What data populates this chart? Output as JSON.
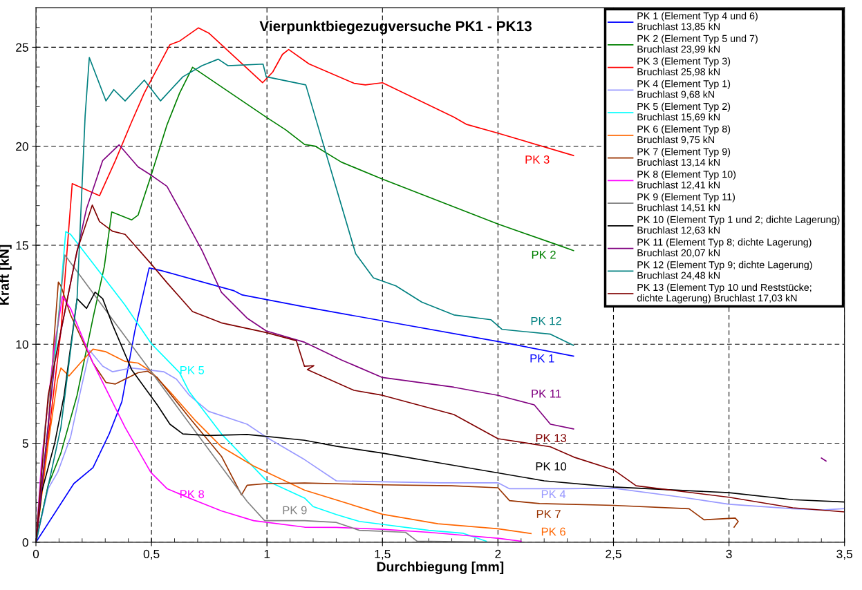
{
  "chart_data": {
    "type": "line",
    "title": "Vierpunktbiegezugversuche PK1 - PK13",
    "xlabel": "Durchbiegung [mm]",
    "ylabel": "Kraft [kN]",
    "xlim": [
      0,
      3.5
    ],
    "ylim": [
      0,
      27
    ],
    "xticks": [
      0,
      {
        "value": 0.1,
        "label": null
      },
      {
        "value": 0.2,
        "label": null
      },
      {
        "value": 0.3,
        "label": null
      },
      {
        "value": 0.4,
        "label": null
      },
      {
        "value": 0.5,
        "label": "0,5"
      },
      {
        "value": 0.6,
        "label": null
      },
      {
        "value": 0.7,
        "label": null
      },
      {
        "value": 0.8,
        "label": null
      },
      {
        "value": 0.9,
        "label": null
      },
      1,
      {
        "value": 1.1,
        "label": null
      },
      {
        "value": 1.2,
        "label": null
      },
      {
        "value": 1.3,
        "label": null
      },
      {
        "value": 1.4,
        "label": null
      },
      {
        "value": 1.5,
        "label": "1,5"
      },
      {
        "value": 1.6,
        "label": null
      },
      {
        "value": 1.7,
        "label": null
      },
      {
        "value": 1.8,
        "label": null
      },
      {
        "value": 1.9,
        "label": null
      },
      2,
      {
        "value": 2.1,
        "label": null
      },
      {
        "value": 2.2,
        "label": null
      },
      {
        "value": 2.3,
        "label": null
      },
      {
        "value": 2.4,
        "label": null
      },
      {
        "value": 2.5,
        "label": "2,5"
      },
      {
        "value": 2.6,
        "label": null
      },
      {
        "value": 2.7,
        "label": null
      },
      {
        "value": 2.8,
        "label": null
      },
      {
        "value": 2.9,
        "label": null
      },
      3,
      {
        "value": 3.1,
        "label": null
      },
      {
        "value": 3.2,
        "label": null
      },
      {
        "value": 3.3,
        "label": null
      },
      {
        "value": 3.4,
        "label": null
      },
      {
        "value": 3.5,
        "label": "3,5"
      }
    ],
    "yticks": [
      0,
      {
        "value": 1,
        "label": null
      },
      {
        "value": 2,
        "label": null
      },
      {
        "value": 3,
        "label": null
      },
      {
        "value": 4,
        "label": null
      },
      5,
      {
        "value": 6,
        "label": null
      },
      {
        "value": 7,
        "label": null
      },
      {
        "value": 8,
        "label": null
      },
      {
        "value": 9,
        "label": null
      },
      10,
      {
        "value": 11,
        "label": null
      },
      {
        "value": 12,
        "label": null
      },
      {
        "value": 13,
        "label": null
      },
      {
        "value": 14,
        "label": null
      },
      15,
      {
        "value": 16,
        "label": null
      },
      {
        "value": 17,
        "label": null
      },
      {
        "value": 18,
        "label": null
      },
      {
        "value": 19,
        "label": null
      },
      20,
      {
        "value": 21,
        "label": null
      },
      {
        "value": 22,
        "label": null
      },
      {
        "value": 23,
        "label": null
      },
      {
        "value": 24,
        "label": null
      },
      25,
      {
        "value": 26,
        "label": null
      }
    ],
    "grid": true,
    "legend": "top right",
    "marker": "none",
    "line_style": "solid",
    "series": [
      {
        "name": "PK 1 (Element Typ 4 und 6)\nBruchlast 13,85 kN",
        "color": "#0000ff",
        "x": [
          0,
          0.164,
          0.247,
          0.317,
          0.372,
          0.428,
          0.469,
          0.49,
          0.539,
          0.858,
          0.893,
          1.162,
          2.018,
          2.327
        ],
        "values": [
          0,
          2.96,
          3.77,
          5.47,
          7.1,
          10.67,
          12.78,
          13.85,
          13.73,
          12.7,
          12.49,
          11.89,
          10.1,
          9.4
        ]
      },
      {
        "name": "PK 2 (Element Typ 5 und 7)\nBruchlast 23,99 kN",
        "color": "#008000",
        "x": [
          0,
          0.053,
          0.108,
          0.178,
          0.247,
          0.296,
          0.328,
          0.414,
          0.442,
          0.497,
          0.567,
          0.622,
          0.678,
          0.997,
          1.081,
          1.163,
          1.21,
          1.322,
          1.5,
          2.0,
          2.255,
          2.327
        ],
        "values": [
          0,
          2.88,
          4.5,
          7.42,
          11.32,
          13.92,
          16.68,
          16.28,
          16.52,
          18.47,
          21.07,
          22.69,
          23.99,
          21.47,
          20.83,
          20.09,
          20.0,
          19.2,
          18.34,
          16.07,
          15.03,
          14.73
        ]
      },
      {
        "name": "PK 3 (Element Typ 3)\nBruchlast 25,98 kN",
        "color": "#ff0000",
        "x": [
          0,
          0.108,
          0.157,
          0.275,
          0.344,
          0.414,
          0.469,
          0.58,
          0.62,
          0.703,
          0.75,
          0.981,
          1.025,
          1.067,
          1.094,
          1.182,
          1.377,
          1.426,
          1.5,
          1.809,
          1.865,
          2.0,
          2.327
        ],
        "values": [
          0,
          10.67,
          18.11,
          17.5,
          19.28,
          21.23,
          22.69,
          25.13,
          25.3,
          25.98,
          25.7,
          23.21,
          23.75,
          24.64,
          24.89,
          24.16,
          23.18,
          23.1,
          23.21,
          21.47,
          21.1,
          20.66,
          19.53
        ]
      },
      {
        "name": "PK 4 (Element Typ 1)\nBruchlast 9,68 kN",
        "color": "#9999ff",
        "x": [
          0,
          0.053,
          0.094,
          0.15,
          0.192,
          0.233,
          0.289,
          0.331,
          0.414,
          0.553,
          0.608,
          0.664,
          0.747,
          0.914,
          0.997,
          1.163,
          1.3,
          1.5,
          1.75,
          2.0,
          2.05,
          2.3,
          2.5,
          2.797,
          3.0,
          3.276,
          3.406,
          3.5
        ],
        "values": [
          0,
          2.71,
          3.53,
          5.31,
          7.59,
          9.68,
          8.89,
          8.61,
          8.8,
          8.61,
          8.24,
          7.42,
          6.61,
          5.96,
          5.31,
          4.17,
          3.1,
          3.05,
          3.0,
          3.0,
          2.7,
          2.7,
          2.73,
          2.27,
          1.92,
          1.69,
          1.63,
          1.7
        ]
      },
      {
        "name": "PK 5 (Element Typ 2)\nBruchlast 15,69 kN",
        "color": "#00ffff",
        "x": [
          0,
          0.081,
          0.129,
          0.15,
          0.247,
          0.386,
          0.5,
          0.622,
          0.664,
          0.803,
          0.997,
          1.163,
          1.2,
          1.3,
          1.4,
          1.5,
          1.7,
          1.85,
          1.95
        ],
        "values": [
          0,
          9.05,
          15.69,
          15.55,
          14.08,
          11.97,
          10.02,
          8.56,
          7.59,
          5.47,
          3.12,
          2.23,
          1.8,
          1.4,
          1.05,
          0.9,
          0.6,
          0.45,
          0.05
        ]
      },
      {
        "name": "PK 6 (Element Typ 8)\nBruchlast 9,75 kN",
        "color": "#ff6600",
        "x": [
          0,
          0.053,
          0.094,
          0.108,
          0.143,
          0.192,
          0.247,
          0.303,
          0.386,
          0.442,
          0.497,
          0.581,
          0.692,
          0.803,
          0.942,
          1.163,
          1.5,
          1.74,
          2.0,
          2.143
        ],
        "values": [
          0,
          4.99,
          8.24,
          8.8,
          8.4,
          9.05,
          9.75,
          9.62,
          9.13,
          9.05,
          8.64,
          7.59,
          6.12,
          4.82,
          3.85,
          2.63,
          1.41,
          0.93,
          0.68,
          0.44
        ]
      },
      {
        "name": "PK 7 (Element Typ 9)\nBruchlast 13,14 kN",
        "color": "#993300",
        "x": [
          0,
          0.053,
          0.081,
          0.097,
          0.108,
          0.15,
          0.247,
          0.303,
          0.344,
          0.386,
          0.442,
          0.483,
          0.525,
          0.664,
          0.803,
          0.89,
          0.914,
          0.997,
          1.163,
          1.5,
          1.8,
          2.0,
          2.05,
          2.18,
          2.5,
          2.827,
          2.892,
          3.0,
          3.027,
          3.04,
          3.022
        ],
        "values": [
          0,
          5.8,
          10.67,
          13.14,
          12.95,
          11.48,
          9.05,
          8.07,
          7.99,
          8.24,
          8.56,
          8.64,
          8.32,
          6.29,
          4.34,
          2.39,
          2.88,
          2.96,
          2.99,
          2.9,
          2.85,
          2.75,
          2.1,
          1.95,
          1.86,
          1.69,
          1.13,
          1.2,
          1.22,
          1.05,
          0.76
        ]
      },
      {
        "name": "PK 8 (Element Typ 10)\nBruchlast 12,41 kN",
        "color": "#ff00ff",
        "x": [
          0,
          0.025,
          0.08,
          0.115,
          0.15,
          0.247,
          0.386,
          0.497,
          0.567,
          0.664,
          0.803,
          0.942,
          1.163,
          1.3,
          1.5,
          1.7,
          1.9,
          2.0,
          2.1
        ],
        "values": [
          0,
          4.2,
          9.9,
          12.41,
          11.8,
          9.05,
          5.8,
          3.53,
          2.71,
          2.23,
          1.58,
          1.09,
          0.76,
          0.75,
          0.65,
          0.5,
          0.3,
          0.2,
          0.05
        ]
      },
      {
        "name": "PK 9 (Element Typ 11)\nBruchlast 14,51 kN",
        "color": "#808080",
        "x": [
          0,
          0.039,
          0.092,
          0.125,
          0.914,
          0.99,
          1.163,
          1.3,
          1.4,
          1.6,
          1.65,
          2.0
        ],
        "values": [
          0,
          5.8,
          10.67,
          14.51,
          2.06,
          1.09,
          1.09,
          1.0,
          0.6,
          0.5,
          0.05,
          0.0
        ]
      },
      {
        "name": "PK 10 (Element Typ 1 und 2; dichte Lagerung)\nBruchlast 12,63 kN",
        "color": "#000000",
        "x": [
          0,
          0.025,
          0.081,
          0.122,
          0.178,
          0.219,
          0.256,
          0.289,
          0.331,
          0.414,
          0.525,
          0.58,
          0.636,
          0.747,
          0.914,
          1.163,
          1.3,
          1.5,
          1.75,
          2.0,
          2.2,
          2.5,
          3.0,
          3.276,
          3.5
        ],
        "values": [
          0,
          2.55,
          4.99,
          7.42,
          12.3,
          11.81,
          12.63,
          12.3,
          11.0,
          8.72,
          6.94,
          5.96,
          5.47,
          5.39,
          5.44,
          5.15,
          4.85,
          4.5,
          4.0,
          3.5,
          3.1,
          2.79,
          2.5,
          2.15,
          2.03
        ]
      },
      {
        "name": "PK 11 (Element Typ 8; dichte Lagerung)\nBruchlast 20,07 kN",
        "color": "#800080",
        "x": [
          0,
          0.081,
          0.164,
          0.219,
          0.289,
          0.36,
          0.442,
          0.497,
          0.567,
          0.636,
          0.719,
          0.803,
          0.914,
          0.997,
          1.163,
          1.322,
          1.5,
          1.809,
          2.0,
          2.157,
          2.227,
          2.327,
          2.9,
          3.4,
          3.42
        ],
        "values": [
          0,
          9.05,
          13.92,
          16.85,
          19.28,
          20.07,
          18.96,
          18.55,
          17.98,
          16.52,
          14.73,
          12.62,
          11.32,
          10.67,
          10.1,
          9.21,
          8.32,
          7.83,
          7.42,
          6.94,
          5.96,
          5.72,
          null,
          4.25,
          4.1
        ]
      },
      {
        "name": "PK 12 (Element Typ 9; dichte Lagerung)\nBruchlast 24,48 kN",
        "color": "#008080",
        "x": [
          0,
          0.108,
          0.178,
          0.213,
          0.231,
          0.303,
          0.337,
          0.386,
          0.469,
          0.539,
          0.636,
          0.719,
          0.789,
          0.831,
          0.983,
          0.997,
          1.168,
          1.384,
          1.461,
          1.558,
          1.67,
          1.809,
          1.969,
          2.018,
          2.227,
          2.327
        ],
        "values": [
          0,
          5.8,
          12.3,
          21.56,
          24.48,
          22.29,
          22.86,
          22.29,
          23.34,
          22.29,
          23.51,
          24.07,
          24.4,
          24.07,
          24.15,
          23.51,
          23.1,
          14.57,
          13.35,
          12.95,
          12.13,
          11.48,
          11.24,
          10.75,
          10.51,
          9.94
        ]
      },
      {
        "name": "PK 13 (Element Typ 10 und Reststücke;\ndichte Lagerung) Bruchlast 17,03 kN",
        "color": "#800000",
        "x": [
          0,
          0.053,
          0.108,
          0.178,
          0.244,
          0.275,
          0.331,
          0.386,
          0.497,
          0.567,
          0.678,
          0.803,
          0.997,
          1.127,
          1.162,
          1.203,
          1.175,
          1.377,
          1.5,
          1.809,
          2.0,
          2.227,
          2.328,
          2.5,
          2.598,
          3.0,
          3.276,
          3.5
        ],
        "values": [
          0,
          7.42,
          10.67,
          14.73,
          17.03,
          16.2,
          15.71,
          15.55,
          14.08,
          13.11,
          11.65,
          11.08,
          10.59,
          10.18,
          8.89,
          8.92,
          8.72,
          7.67,
          7.42,
          6.45,
          5.23,
          4.82,
          4.3,
          3.66,
          2.85,
          2.27,
          1.74,
          1.53
        ]
      }
    ],
    "annotations": [
      "PK 1",
      "PK 2",
      "PK 3",
      "PK 4",
      "PK 5",
      "PK 6",
      "PK 7",
      "PK 8",
      "PK 9",
      "PK 10",
      "PK 11",
      "PK 12",
      "PK 13"
    ]
  }
}
